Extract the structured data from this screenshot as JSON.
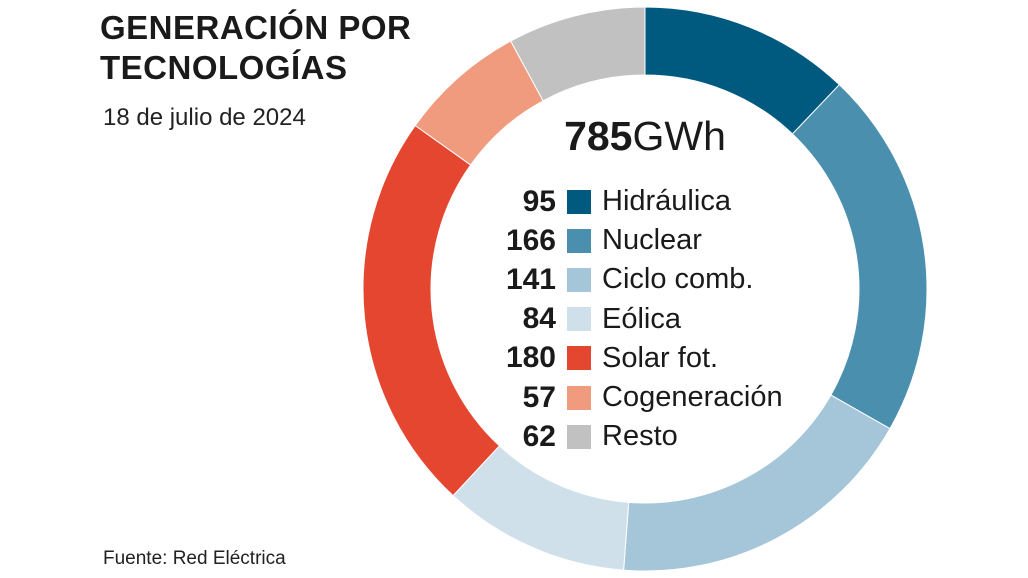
{
  "header": {
    "title_line1": "GENERACIÓN POR",
    "title_line2": "TECNOLOGÍAS",
    "subtitle": "18 de julio de 2024"
  },
  "footer": {
    "source": "Fuente: Red Eléctrica"
  },
  "chart_data": {
    "type": "pie",
    "donut": true,
    "title": "GENERACIÓN POR TECNOLOGÍAS",
    "total_value": "785",
    "total_unit": "GWh",
    "categories": [
      "Hidráulica",
      "Nuclear",
      "Ciclo comb.",
      "Eólica",
      "Solar fot.",
      "Cogeneración",
      "Resto"
    ],
    "values": [
      95,
      166,
      141,
      84,
      180,
      57,
      62
    ],
    "colors": [
      "#005a80",
      "#4a8fad",
      "#a5c5d9",
      "#cfe0eb",
      "#e5462f",
      "#f09a7e",
      "#c1c1c1"
    ]
  }
}
